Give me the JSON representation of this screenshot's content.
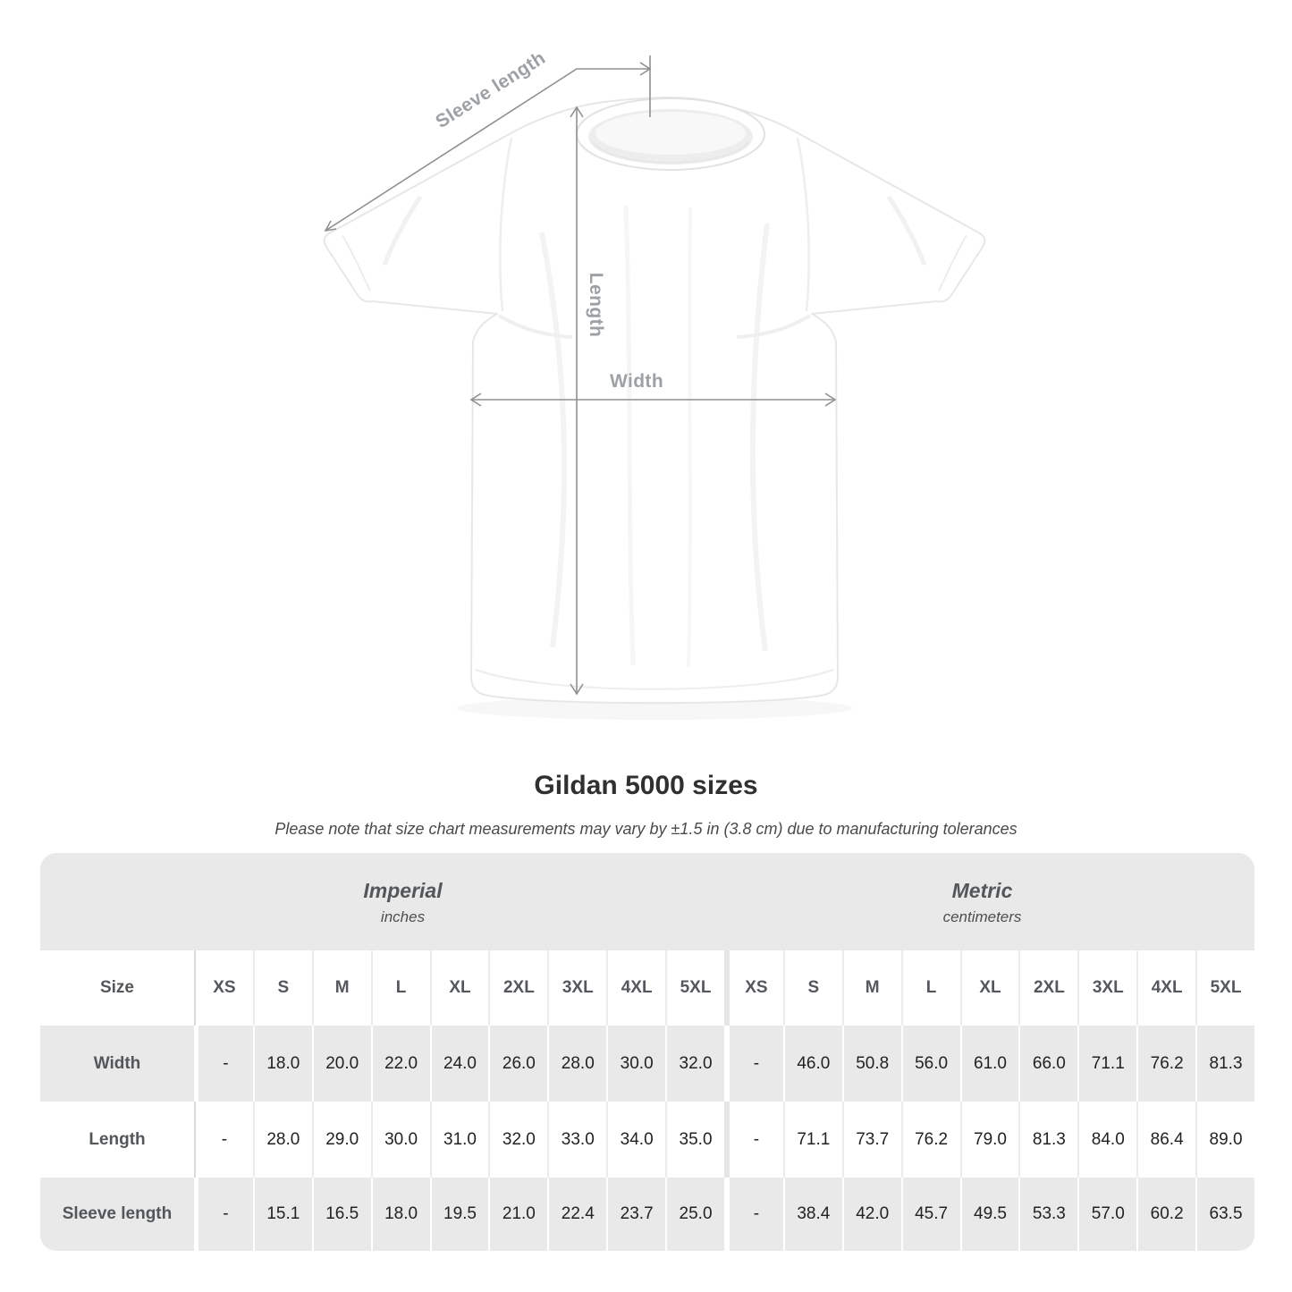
{
  "title": "Gildan 5000 sizes",
  "subtitle": "Please note that size chart measurements may vary by ±1.5 in (3.8 cm) due to manufacturing tolerances",
  "diagram": {
    "labels": {
      "sleeve_length": "Sleeve length",
      "length": "Length",
      "width": "Width"
    }
  },
  "chart_data": {
    "type": "table",
    "title": "Gildan 5000 sizes",
    "unit_groups": [
      {
        "label": "Imperial",
        "unit": "inches"
      },
      {
        "label": "Metric",
        "unit": "centimeters"
      }
    ],
    "header_row": {
      "label": "Size",
      "columns": [
        "XS",
        "S",
        "M",
        "L",
        "XL",
        "2XL",
        "3XL",
        "4XL",
        "5XL",
        "XS",
        "S",
        "M",
        "L",
        "XL",
        "2XL",
        "3XL",
        "4XL",
        "5XL"
      ]
    },
    "rows": [
      {
        "label": "Width",
        "values": [
          "-",
          "18.0",
          "20.0",
          "22.0",
          "24.0",
          "26.0",
          "28.0",
          "30.0",
          "32.0",
          "-",
          "46.0",
          "50.8",
          "56.0",
          "61.0",
          "66.0",
          "71.1",
          "76.2",
          "81.3"
        ]
      },
      {
        "label": "Length",
        "values": [
          "-",
          "28.0",
          "29.0",
          "30.0",
          "31.0",
          "32.0",
          "33.0",
          "34.0",
          "35.0",
          "-",
          "71.1",
          "73.7",
          "76.2",
          "79.0",
          "81.3",
          "84.0",
          "86.4",
          "89.0"
        ]
      },
      {
        "label": "Sleeve length",
        "values": [
          "-",
          "15.1",
          "16.5",
          "18.0",
          "19.5",
          "21.0",
          "22.4",
          "23.7",
          "25.0",
          "-",
          "38.4",
          "42.0",
          "45.7",
          "49.5",
          "53.3",
          "57.0",
          "60.2",
          "63.5"
        ]
      }
    ]
  },
  "colors": {
    "band": "#e9e9e9",
    "row_gray": "#e9e9e9",
    "annotation_line": "#909090",
    "annotation_label": "#9da1a4",
    "data_text": "#222222",
    "header_text": "#54585c"
  }
}
